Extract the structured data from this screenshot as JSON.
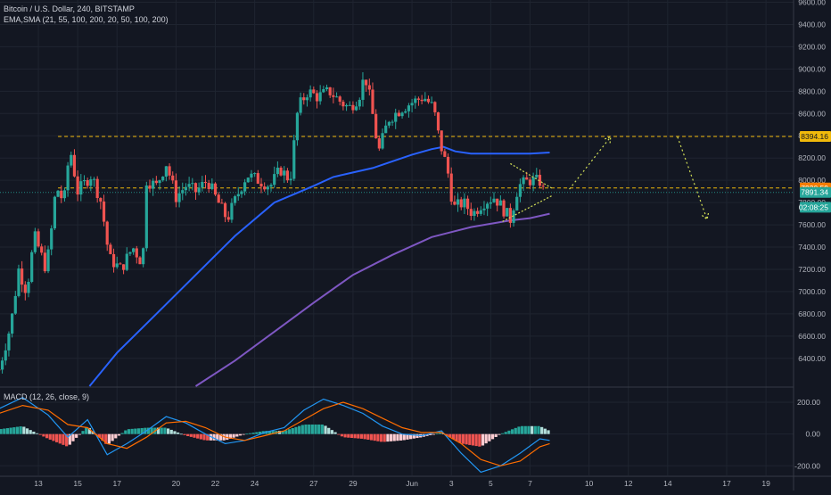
{
  "header": {
    "symbol_line": "Bitcoin / U.S. Dollar, 240, BITSTAMP",
    "indicators_line": "EMA,SMA (21, 55, 100, 200, 20, 50, 100, 200)"
  },
  "macd_label": "MACD (12, 26, close, 9)",
  "colors": {
    "background": "#131722",
    "grid": "#1f2430",
    "up": "#26a69a",
    "down": "#ef5350",
    "ma_blue": "#2962ff",
    "ma_purple": "#7e57c2",
    "level_line": "#f0b90b",
    "projection": "#d4e157",
    "macd_line": "#2196f3",
    "signal_line": "#ff6d00",
    "hist_up_strong": "#26a69a",
    "hist_up_weak": "#b2dfdb",
    "hist_down_strong": "#ef5350",
    "hist_down_weak": "#ffcdd2"
  },
  "chart_data": {
    "type": "candlestick",
    "price_axis": {
      "ticks": [
        "9600.00",
        "9400.00",
        "9200.00",
        "9000.00",
        "8800.00",
        "8600.00",
        "8400.00",
        "8200.00",
        "8000.00",
        "7800.00",
        "7600.00",
        "7400.00",
        "7200.00",
        "7000.00",
        "6800.00",
        "6600.00",
        "6400.00"
      ],
      "range": [
        6150,
        9620
      ]
    },
    "macd_axis": {
      "ticks": [
        "200.00",
        "0.00",
        "-200.00"
      ],
      "range": [
        -260,
        290
      ]
    },
    "x_axis": {
      "ticks": [
        "13",
        "15",
        "17",
        "20",
        "22",
        "24",
        "27",
        "29",
        "Jun",
        "3",
        "5",
        "7",
        "10",
        "12",
        "14",
        "17",
        "19"
      ],
      "day_index": [
        0,
        2,
        4,
        7,
        9,
        11,
        14,
        16,
        19,
        21,
        23,
        25,
        28,
        30,
        32,
        35,
        37
      ],
      "range": [
        -1.95,
        38.4
      ]
    },
    "price_labels": [
      {
        "value": "8394.16",
        "price": 8394.16,
        "color": "#f0b90b",
        "text_color": "#131722"
      },
      {
        "value": "7930.59",
        "price": 7930.59,
        "color": "#f57c00",
        "text_color": "#ffffff"
      },
      {
        "value": "7891.34",
        "price": 7891.34,
        "color": "#26a69a",
        "text_color": "#ffffff"
      },
      {
        "value": "02:08:25",
        "price": 7758,
        "color": "#26a69a",
        "text_color": "#ffffff"
      }
    ],
    "levels": [
      8394.16,
      7930.59,
      7891.34
    ],
    "ohlc_keypoints": [
      [
        -2.0,
        6300
      ],
      [
        -1.4,
        6700
      ],
      [
        -1.0,
        7200
      ],
      [
        -0.6,
        7000
      ],
      [
        -0.2,
        7500
      ],
      [
        0.4,
        7200
      ],
      [
        0.7,
        7600
      ],
      [
        0.9,
        7950
      ],
      [
        1.3,
        7800
      ],
      [
        1.6,
        8300
      ],
      [
        2.0,
        7900
      ],
      [
        2.7,
        8050
      ],
      [
        3.2,
        7800
      ],
      [
        3.6,
        7300
      ],
      [
        4.2,
        7200
      ],
      [
        4.8,
        7400
      ],
      [
        5.3,
        7250
      ],
      [
        5.5,
        8000
      ],
      [
        6.0,
        7950
      ],
      [
        6.5,
        8150
      ],
      [
        7.0,
        7850
      ],
      [
        7.5,
        7950
      ],
      [
        8.0,
        7900
      ],
      [
        8.6,
        8000
      ],
      [
        9.0,
        7850
      ],
      [
        9.6,
        7650
      ],
      [
        10.2,
        7900
      ],
      [
        10.6,
        8050
      ],
      [
        11.2,
        8000
      ],
      [
        11.8,
        7950
      ],
      [
        12.3,
        8100
      ],
      [
        12.8,
        8000
      ],
      [
        13.2,
        8650
      ],
      [
        13.7,
        8800
      ],
      [
        14.2,
        8750
      ],
      [
        14.8,
        8800
      ],
      [
        15.4,
        8700
      ],
      [
        15.8,
        8650
      ],
      [
        16.3,
        8750
      ],
      [
        16.6,
        8950
      ],
      [
        16.9,
        8700
      ],
      [
        17.3,
        8250
      ],
      [
        17.8,
        8550
      ],
      [
        18.5,
        8650
      ],
      [
        19.0,
        8700
      ],
      [
        19.6,
        8750
      ],
      [
        20.1,
        8650
      ],
      [
        20.4,
        8350
      ],
      [
        20.8,
        8100
      ],
      [
        21.1,
        7750
      ],
      [
        21.6,
        7800
      ],
      [
        22.1,
        7700
      ],
      [
        22.6,
        7800
      ],
      [
        23.2,
        7850
      ],
      [
        23.8,
        7700
      ],
      [
        24.0,
        7650
      ],
      [
        24.4,
        7950
      ],
      [
        25.0,
        8000
      ],
      [
        25.5,
        7990
      ],
      [
        25.7,
        7891
      ]
    ],
    "ma_blue": [
      [
        2.6,
        6150
      ],
      [
        4.0,
        6450
      ],
      [
        6.0,
        6800
      ],
      [
        8.0,
        7150
      ],
      [
        10.0,
        7500
      ],
      [
        12.0,
        7800
      ],
      [
        14.0,
        7950
      ],
      [
        15.0,
        8030
      ],
      [
        16.0,
        8070
      ],
      [
        17.0,
        8110
      ],
      [
        18.0,
        8170
      ],
      [
        19.0,
        8230
      ],
      [
        20.0,
        8280
      ],
      [
        20.6,
        8300
      ],
      [
        21.2,
        8260
      ],
      [
        22.0,
        8240
      ],
      [
        23.0,
        8240
      ],
      [
        24.0,
        8240
      ],
      [
        25.0,
        8240
      ],
      [
        26.0,
        8250
      ]
    ],
    "ma_purple": [
      [
        8.0,
        6150
      ],
      [
        10.0,
        6380
      ],
      [
        12.0,
        6640
      ],
      [
        14.0,
        6900
      ],
      [
        16.0,
        7150
      ],
      [
        18.0,
        7330
      ],
      [
        20.0,
        7490
      ],
      [
        22.0,
        7580
      ],
      [
        24.0,
        7640
      ],
      [
        25.0,
        7660
      ],
      [
        26.0,
        7700
      ]
    ],
    "triangle": {
      "upper": [
        [
          24.0,
          8150
        ],
        [
          26.1,
          7930
        ]
      ],
      "lower": [
        [
          23.6,
          7630
        ],
        [
          26.1,
          7860
        ]
      ]
    },
    "projection": [
      {
        "from": [
          27.0,
          7920
        ],
        "to": [
          29.1,
          8390
        ]
      },
      {
        "from": [
          32.5,
          8390
        ],
        "to": [
          34.0,
          7650
        ]
      }
    ],
    "macd_keypoints": {
      "macd": [
        [
          -2,
          160
        ],
        [
          -0.8,
          230
        ],
        [
          0.5,
          120
        ],
        [
          1.5,
          -20
        ],
        [
          2.5,
          90
        ],
        [
          3.5,
          -130
        ],
        [
          4.5,
          -60
        ],
        [
          5.5,
          20
        ],
        [
          6.5,
          110
        ],
        [
          7.5,
          70
        ],
        [
          8.5,
          0
        ],
        [
          9.5,
          -60
        ],
        [
          10.5,
          -40
        ],
        [
          11.5,
          10
        ],
        [
          12.5,
          40
        ],
        [
          13.5,
          150
        ],
        [
          14.5,
          220
        ],
        [
          15.5,
          180
        ],
        [
          16.5,
          130
        ],
        [
          17.5,
          50
        ],
        [
          18.5,
          0
        ],
        [
          19.5,
          -10
        ],
        [
          20.5,
          20
        ],
        [
          21.5,
          -120
        ],
        [
          22.5,
          -240
        ],
        [
          23.5,
          -200
        ],
        [
          24.5,
          -120
        ],
        [
          25.5,
          -30
        ],
        [
          26.0,
          -40
        ]
      ],
      "signal": [
        [
          -2,
          130
        ],
        [
          -0.8,
          180
        ],
        [
          0.5,
          150
        ],
        [
          1.5,
          60
        ],
        [
          2.5,
          40
        ],
        [
          3.5,
          -60
        ],
        [
          4.5,
          -90
        ],
        [
          5.5,
          -20
        ],
        [
          6.5,
          70
        ],
        [
          7.5,
          80
        ],
        [
          8.5,
          40
        ],
        [
          9.5,
          -20
        ],
        [
          10.5,
          -40
        ],
        [
          11.5,
          -10
        ],
        [
          12.5,
          20
        ],
        [
          13.5,
          90
        ],
        [
          14.5,
          160
        ],
        [
          15.5,
          200
        ],
        [
          16.5,
          160
        ],
        [
          17.5,
          100
        ],
        [
          18.5,
          40
        ],
        [
          19.5,
          10
        ],
        [
          20.5,
          10
        ],
        [
          21.5,
          -60
        ],
        [
          22.5,
          -160
        ],
        [
          23.5,
          -200
        ],
        [
          24.5,
          -170
        ],
        [
          25.5,
          -80
        ],
        [
          26.0,
          -60
        ]
      ]
    }
  }
}
